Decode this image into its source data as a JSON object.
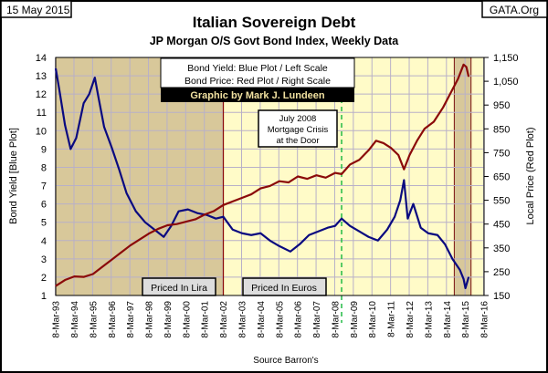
{
  "date_label": "15 May 2015",
  "source_site": "GATA.Org",
  "source_note": "Source Barron's",
  "credit": "Graphic by Mark J. Lundeen",
  "colors": {
    "yield": "#0A0A80",
    "price": "#8B0A0A",
    "plot_bg": "#FFFBC8",
    "shade": "#D8C89A",
    "crisis_line": "#22BB44"
  },
  "chart_data": {
    "type": "line",
    "title": "Italian Sovereign Debt",
    "subtitle": "JP Morgan O/S Govt Bond Index, Weekly Data",
    "ylabel": "Bond Yield  [Blue Plot]",
    "ylabel_right": "Local Price  (Red Plot)",
    "legend": [
      "Bond Yield: Blue Plot / Left Scale",
      "Bond Price: Red Plot / Right Scale"
    ],
    "ylim": [
      1,
      14
    ],
    "ylim_right": [
      150,
      1150
    ],
    "xlim": [
      1993.2,
      2016.2
    ],
    "y_ticks": [
      "1",
      "2",
      "3",
      "4",
      "5",
      "6",
      "7",
      "8",
      "9",
      "10",
      "11",
      "12",
      "13",
      "14"
    ],
    "y_right_ticks": [
      "150",
      "250",
      "350",
      "450",
      "550",
      "650",
      "750",
      "850",
      "950",
      "1,050",
      "1,150"
    ],
    "x_ticks": [
      "8-Mar-93",
      "8-Mar-94",
      "8-Mar-95",
      "8-Mar-96",
      "8-Mar-97",
      "8-Mar-98",
      "8-Mar-99",
      "8-Mar-00",
      "8-Mar-01",
      "8-Mar-02",
      "8-Mar-03",
      "8-Mar-04",
      "8-Mar-05",
      "8-Mar-06",
      "8-Mar-07",
      "8-Mar-08",
      "8-Mar-09",
      "8-Mar-10",
      "8-Mar-11",
      "8-Mar-12",
      "8-Mar-13",
      "8-Mar-14",
      "8-Mar-15",
      "8-Mar-16"
    ],
    "annotations": {
      "crisis": [
        "July 2008",
        "Mortgage Crisis",
        "at the Door"
      ],
      "lira": "Priced In Lira",
      "euros": "Priced In Euros"
    },
    "shaded_ranges": [
      [
        1993.2,
        2002.2
      ],
      [
        2014.6,
        2015.5
      ]
    ],
    "crisis_x": 2008.55,
    "series": [
      {
        "name": "Bond Yield",
        "axis": "left",
        "x": [
          1993.2,
          1993.4,
          1993.7,
          1994.0,
          1994.3,
          1994.7,
          1995.0,
          1995.3,
          1995.5,
          1995.8,
          1996.2,
          1996.6,
          1997.0,
          1997.5,
          1998.0,
          1998.5,
          1999.0,
          1999.4,
          1999.8,
          2000.3,
          2000.8,
          2001.3,
          2001.8,
          2002.2,
          2002.7,
          2003.2,
          2003.7,
          2004.2,
          2004.7,
          2005.2,
          2005.8,
          2006.3,
          2006.8,
          2007.3,
          2007.8,
          2008.2,
          2008.55,
          2009.0,
          2009.5,
          2010.0,
          2010.5,
          2011.0,
          2011.4,
          2011.7,
          2011.9,
          2012.1,
          2012.4,
          2012.8,
          2013.2,
          2013.7,
          2014.1,
          2014.5,
          2014.9,
          2015.1,
          2015.2,
          2015.37
        ],
        "y": [
          13.4,
          12.2,
          10.3,
          9.0,
          9.6,
          11.5,
          12.0,
          12.9,
          11.8,
          10.2,
          9.1,
          7.9,
          6.6,
          5.6,
          5.0,
          4.6,
          4.2,
          4.8,
          5.6,
          5.7,
          5.5,
          5.4,
          5.2,
          5.3,
          4.6,
          4.4,
          4.3,
          4.4,
          4.0,
          3.7,
          3.4,
          3.8,
          4.3,
          4.5,
          4.7,
          4.8,
          5.2,
          4.8,
          4.5,
          4.2,
          4.0,
          4.6,
          5.3,
          6.2,
          7.3,
          5.2,
          6.0,
          4.7,
          4.4,
          4.3,
          3.8,
          3.0,
          2.4,
          1.9,
          1.4,
          2.0
        ]
      },
      {
        "name": "Bond Price",
        "axis": "right",
        "x": [
          1993.2,
          1993.7,
          1994.2,
          1994.7,
          1995.2,
          1995.7,
          1996.2,
          1996.7,
          1997.2,
          1997.7,
          1998.2,
          1998.7,
          1999.2,
          1999.7,
          2000.2,
          2000.7,
          2001.2,
          2001.7,
          2002.2,
          2002.7,
          2003.2,
          2003.7,
          2004.2,
          2004.7,
          2005.2,
          2005.7,
          2006.2,
          2006.7,
          2007.2,
          2007.7,
          2008.2,
          2008.55,
          2009.0,
          2009.5,
          2010.0,
          2010.4,
          2010.8,
          2011.2,
          2011.6,
          2011.9,
          2012.2,
          2012.6,
          2013.0,
          2013.5,
          2014.0,
          2014.4,
          2014.8,
          2015.1,
          2015.25,
          2015.37
        ],
        "y": [
          190,
          215,
          230,
          228,
          240,
          270,
          300,
          330,
          360,
          385,
          410,
          430,
          445,
          450,
          460,
          470,
          490,
          505,
          530,
          545,
          560,
          575,
          600,
          610,
          630,
          625,
          650,
          640,
          655,
          645,
          665,
          660,
          700,
          720,
          760,
          800,
          790,
          770,
          740,
          680,
          740,
          800,
          850,
          880,
          940,
          1000,
          1060,
          1120,
          1110,
          1070
        ]
      }
    ]
  }
}
